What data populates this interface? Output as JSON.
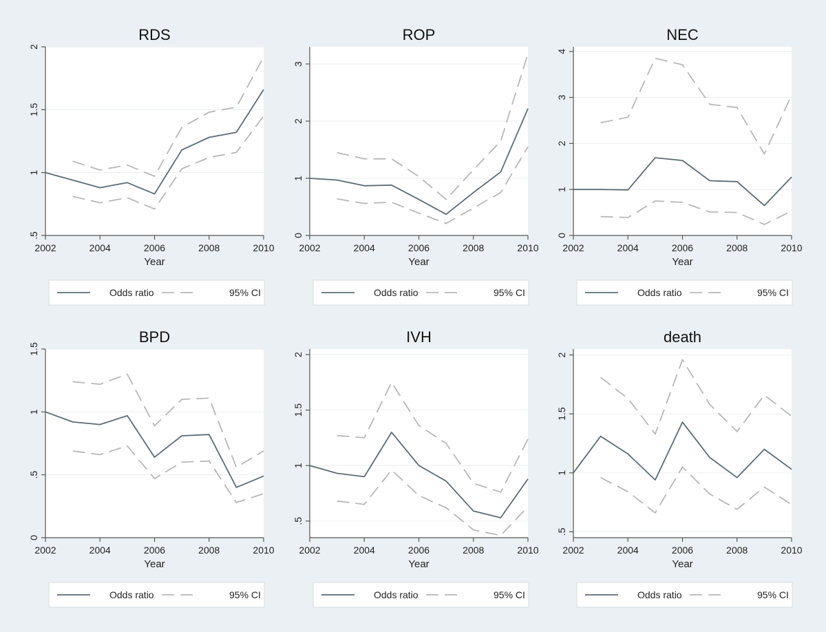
{
  "figure": {
    "background": "#eaf0f3",
    "plot_background": "#ffffff",
    "line_color": "#5a6b73",
    "ci_color": "#b7b7b7",
    "grid_color": "#e9eef1"
  },
  "chart_data": [
    {
      "type": "line",
      "title": "RDS",
      "xlabel": "Year",
      "ylabel": "",
      "xlim": [
        2002,
        2010
      ],
      "ylim": [
        0.5,
        2
      ],
      "xticks": [
        2002,
        2004,
        2006,
        2008,
        2010
      ],
      "xtick_labels": [
        "2002",
        "2004",
        "2006",
        "2008",
        "2010"
      ],
      "yticks": [
        0.5,
        1,
        1.5,
        2
      ],
      "ytick_labels": [
        ".5",
        "1",
        "1.5",
        "2"
      ],
      "grid": true,
      "legend_position": "bottom",
      "x": [
        2002,
        2003,
        2004,
        2005,
        2006,
        2007,
        2008,
        2009,
        2010
      ],
      "series": [
        {
          "name": "Odds ratio",
          "style": "solid",
          "values": [
            1.0,
            0.94,
            0.88,
            0.92,
            0.83,
            1.18,
            1.28,
            1.32,
            1.66
          ]
        },
        {
          "name": "95% CI",
          "style": "dashed",
          "values": [
            null,
            1.09,
            1.02,
            1.06,
            0.97,
            1.36,
            1.48,
            1.52,
            1.92
          ]
        },
        {
          "name": "95% CI",
          "style": "dashed",
          "legend": false,
          "values": [
            null,
            0.81,
            0.76,
            0.8,
            0.71,
            1.03,
            1.12,
            1.16,
            1.45
          ]
        }
      ]
    },
    {
      "type": "line",
      "title": "ROP",
      "xlabel": "Year",
      "ylabel": "",
      "xlim": [
        2002,
        2010
      ],
      "ylim": [
        0,
        3.3
      ],
      "xticks": [
        2002,
        2004,
        2006,
        2008,
        2010
      ],
      "xtick_labels": [
        "2002",
        "2004",
        "2006",
        "2008",
        "2010"
      ],
      "yticks": [
        0,
        1,
        2,
        3
      ],
      "ytick_labels": [
        "0",
        "1",
        "2",
        "3"
      ],
      "grid": true,
      "legend_position": "bottom",
      "x": [
        2002,
        2003,
        2004,
        2005,
        2006,
        2007,
        2008,
        2009,
        2010
      ],
      "series": [
        {
          "name": "Odds ratio",
          "style": "solid",
          "values": [
            1.0,
            0.97,
            0.87,
            0.88,
            0.63,
            0.37,
            0.75,
            1.11,
            2.22
          ]
        },
        {
          "name": "95% CI",
          "style": "dashed",
          "values": [
            null,
            1.45,
            1.34,
            1.34,
            1.03,
            0.63,
            1.15,
            1.65,
            3.18
          ]
        },
        {
          "name": "95% CI",
          "style": "dashed",
          "legend": false,
          "values": [
            null,
            0.64,
            0.56,
            0.58,
            0.39,
            0.21,
            0.48,
            0.75,
            1.55
          ]
        }
      ]
    },
    {
      "type": "line",
      "title": "NEC",
      "xlabel": "Year",
      "ylabel": "",
      "xlim": [
        2002,
        2010
      ],
      "ylim": [
        0,
        4.1
      ],
      "xticks": [
        2002,
        2004,
        2006,
        2008,
        2010
      ],
      "xtick_labels": [
        "2002",
        "2004",
        "2006",
        "2008",
        "2010"
      ],
      "yticks": [
        0,
        1,
        2,
        3,
        4
      ],
      "ytick_labels": [
        "0",
        "1",
        "2",
        "3",
        "4"
      ],
      "grid": true,
      "legend_position": "bottom",
      "x": [
        2002,
        2003,
        2004,
        2005,
        2006,
        2007,
        2008,
        2009,
        2010
      ],
      "series": [
        {
          "name": "Odds ratio",
          "style": "solid",
          "values": [
            1.0,
            1.0,
            0.99,
            1.69,
            1.63,
            1.19,
            1.17,
            0.65,
            1.27
          ]
        },
        {
          "name": "95% CI",
          "style": "dashed",
          "values": [
            null,
            2.45,
            2.57,
            3.85,
            3.71,
            2.85,
            2.78,
            1.77,
            3.05
          ]
        },
        {
          "name": "95% CI",
          "style": "dashed",
          "legend": false,
          "values": [
            null,
            0.41,
            0.39,
            0.75,
            0.72,
            0.51,
            0.5,
            0.24,
            0.53
          ]
        }
      ]
    },
    {
      "type": "line",
      "title": "BPD",
      "xlabel": "Year",
      "ylabel": "",
      "xlim": [
        2002,
        2010
      ],
      "ylim": [
        0,
        1.5
      ],
      "xticks": [
        2002,
        2004,
        2006,
        2008,
        2010
      ],
      "xtick_labels": [
        "2002",
        "2004",
        "2006",
        "2008",
        "2010"
      ],
      "yticks": [
        0,
        0.5,
        1,
        1.5
      ],
      "ytick_labels": [
        "0",
        ".5",
        "1",
        "1.5"
      ],
      "grid": true,
      "legend_position": "bottom",
      "x": [
        2002,
        2003,
        2004,
        2005,
        2006,
        2007,
        2008,
        2009,
        2010
      ],
      "series": [
        {
          "name": "Odds ratio",
          "style": "solid",
          "values": [
            1.0,
            0.92,
            0.9,
            0.97,
            0.64,
            0.81,
            0.82,
            0.4,
            0.49
          ]
        },
        {
          "name": "95% CI",
          "style": "dashed",
          "values": [
            null,
            1.24,
            1.22,
            1.3,
            0.89,
            1.1,
            1.11,
            0.56,
            0.69
          ]
        },
        {
          "name": "95% CI",
          "style": "dashed",
          "legend": false,
          "values": [
            null,
            0.69,
            0.66,
            0.73,
            0.47,
            0.6,
            0.61,
            0.28,
            0.35
          ]
        }
      ]
    },
    {
      "type": "line",
      "title": "IVH",
      "xlabel": "Year",
      "ylabel": "",
      "xlim": [
        2002,
        2010
      ],
      "ylim": [
        0.35,
        2.05
      ],
      "xticks": [
        2002,
        2004,
        2006,
        2008,
        2010
      ],
      "xtick_labels": [
        "2002",
        "2004",
        "2006",
        "2008",
        "2010"
      ],
      "yticks": [
        0.5,
        1,
        1.5,
        2
      ],
      "ytick_labels": [
        ".5",
        "1",
        "1.5",
        "2"
      ],
      "grid": true,
      "legend_position": "bottom",
      "x": [
        2002,
        2003,
        2004,
        2005,
        2006,
        2007,
        2008,
        2009,
        2010
      ],
      "series": [
        {
          "name": "Odds ratio",
          "style": "solid",
          "values": [
            1.0,
            0.93,
            0.9,
            1.3,
            1.0,
            0.86,
            0.59,
            0.53,
            0.88
          ]
        },
        {
          "name": "95% CI",
          "style": "dashed",
          "values": [
            null,
            1.27,
            1.25,
            1.75,
            1.36,
            1.2,
            0.84,
            0.76,
            1.24
          ]
        },
        {
          "name": "95% CI",
          "style": "dashed",
          "legend": false,
          "values": [
            null,
            0.68,
            0.65,
            0.96,
            0.73,
            0.62,
            0.42,
            0.37,
            0.63
          ]
        }
      ]
    },
    {
      "type": "line",
      "title": "death",
      "xlabel": "Year",
      "ylabel": "",
      "xlim": [
        2002,
        2010
      ],
      "ylim": [
        0.45,
        2.05
      ],
      "xticks": [
        2002,
        2004,
        2006,
        2008,
        2010
      ],
      "xtick_labels": [
        "2002",
        "2004",
        "2006",
        "2008",
        "2010"
      ],
      "yticks": [
        0.5,
        1,
        1.5,
        2
      ],
      "ytick_labels": [
        ".5",
        "1",
        "1.5",
        "2"
      ],
      "grid": true,
      "legend_position": "bottom",
      "x": [
        2002,
        2003,
        2004,
        2005,
        2006,
        2007,
        2008,
        2009,
        2010
      ],
      "series": [
        {
          "name": "Odds ratio",
          "style": "solid",
          "values": [
            1.0,
            1.31,
            1.16,
            0.94,
            1.43,
            1.13,
            0.96,
            1.2,
            1.03
          ]
        },
        {
          "name": "95% CI",
          "style": "dashed",
          "values": [
            null,
            1.81,
            1.63,
            1.33,
            1.96,
            1.58,
            1.35,
            1.66,
            1.48
          ]
        },
        {
          "name": "95% CI",
          "style": "dashed",
          "legend": false,
          "values": [
            null,
            0.96,
            0.84,
            0.66,
            1.05,
            0.82,
            0.69,
            0.88,
            0.73
          ]
        }
      ]
    }
  ]
}
